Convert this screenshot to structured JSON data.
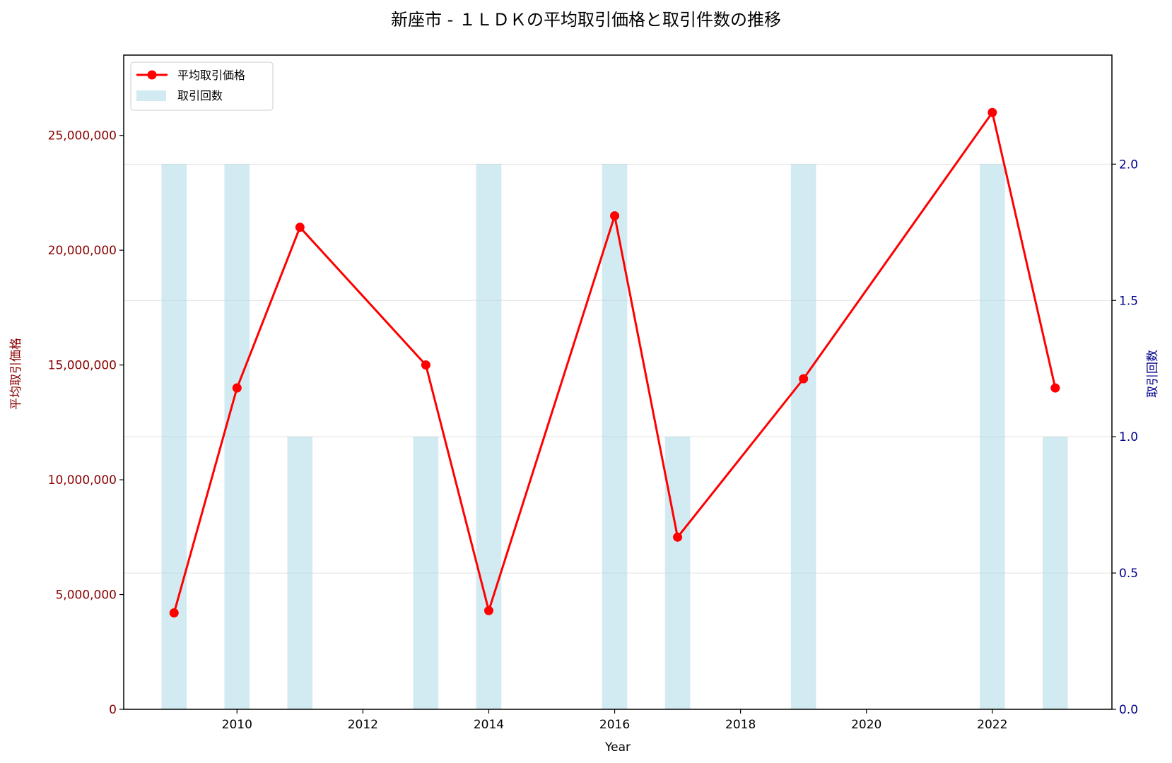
{
  "chart_data": {
    "type": "bar+line",
    "title": "新座市 - １ＬＤＫの平均取引価格と取引件数の推移",
    "xlabel": "Year",
    "ylabel_left": "平均取引価格",
    "ylabel_right": "取引回数",
    "xlim": [
      2008.2,
      2023.9
    ],
    "ylim_left": [
      0,
      28500000
    ],
    "ylim_right": [
      0,
      2.4
    ],
    "x_ticks": [
      "2010",
      "2012",
      "2014",
      "2016",
      "2018",
      "2020",
      "2022"
    ],
    "y_left_ticks": [
      "0",
      "5,000,000",
      "10,000,000",
      "15,000,000",
      "20,000,000",
      "25,000,000"
    ],
    "y_right_ticks": [
      "0.0",
      "0.5",
      "1.0",
      "1.5",
      "2.0"
    ],
    "grid": "right-axis horizontal",
    "legend_position": "top-left",
    "series": [
      {
        "name": "平均取引価格",
        "kind": "line",
        "axis": "left",
        "color": "#ff0000",
        "x": [
          2009,
          2010,
          2011,
          2013,
          2014,
          2016,
          2017,
          2019,
          2022,
          2023
        ],
        "y": [
          4200000,
          14000000,
          21000000,
          15000000,
          4300000,
          21500000,
          7500000,
          14400000,
          26000000,
          14000000
        ]
      },
      {
        "name": "取引回数",
        "kind": "bar",
        "axis": "right",
        "color": "#add8e6",
        "x": [
          2009,
          2010,
          2011,
          2013,
          2014,
          2016,
          2017,
          2019,
          2022,
          2023
        ],
        "y": [
          2,
          2,
          1,
          1,
          2,
          2,
          1,
          2,
          2,
          1
        ]
      }
    ],
    "colors": {
      "left_axis": "#8b0000",
      "right_axis": "#00008b",
      "line": "#ff0000",
      "bar": "#add8e6",
      "grid": "#cccccc"
    }
  }
}
